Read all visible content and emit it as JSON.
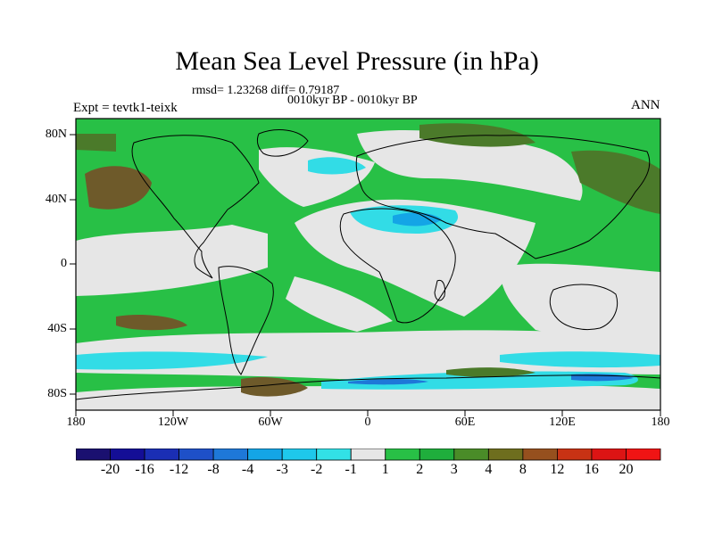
{
  "title": "Mean Sea Level Pressure (in hPa)",
  "stats": "rmsd= 1.23268 diff= 0.79187",
  "period": "0010kyr BP - 0010kyr BP",
  "experiment": "Expt = tevtk1-teixk",
  "season": "ANN",
  "axes": {
    "lat_ticks": [
      "80N",
      "40N",
      "0",
      "40S",
      "80S"
    ],
    "lon_ticks": [
      "180",
      "120W",
      "60W",
      "0",
      "60E",
      "120E",
      "180"
    ]
  },
  "colorbar": {
    "labels": [
      "-20",
      "-16",
      "-12",
      "-8",
      "-4",
      "-3",
      "-2",
      "-1",
      "1",
      "2",
      "3",
      "4",
      "8",
      "12",
      "16",
      "20"
    ],
    "colors": [
      "#1a1070",
      "#140e96",
      "#1a2eb4",
      "#1e50c8",
      "#1e78d8",
      "#14a5e6",
      "#1ec8eb",
      "#32e1e6",
      "#e6e6e6",
      "#28c046",
      "#1fae3c",
      "#4a8c28",
      "#6e6e1e",
      "#96501e",
      "#c83214",
      "#dc1414",
      "#f01414"
    ]
  },
  "colors": {
    "ocean_green": "#28c046",
    "land_white": "#e6e6e6",
    "dark_green": "#4b7a2a",
    "brown": "#6e5a2a",
    "cyan": "#32dce6",
    "light_blue": "#14a5e6"
  }
}
